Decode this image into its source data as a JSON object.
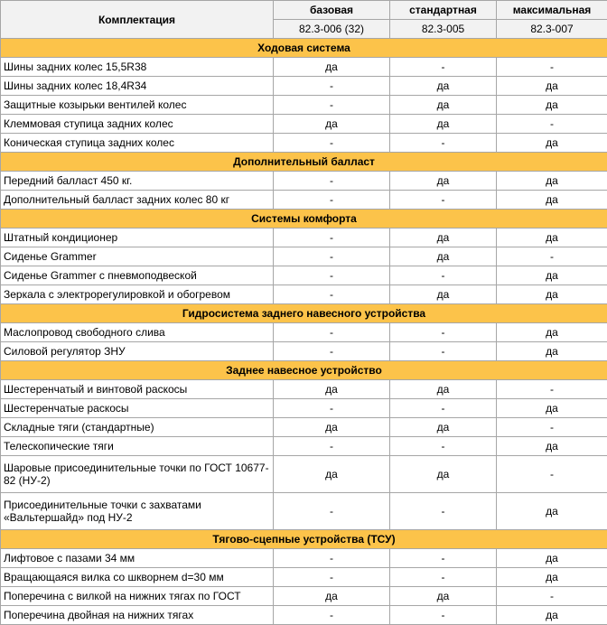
{
  "header": {
    "title": "Комплектация",
    "columns": [
      {
        "name": "базовая",
        "code": "82.3-006 (32)"
      },
      {
        "name": "стандартная",
        "code": "82.3-005"
      },
      {
        "name": "максимальная",
        "code": "82.3-007"
      }
    ]
  },
  "sections": [
    {
      "title": "Ходовая система",
      "rows": [
        {
          "label": "Шины задних колес 15,5R38",
          "values": [
            "да",
            "-",
            "-"
          ]
        },
        {
          "label": "Шины задних колес 18,4R34",
          "values": [
            "-",
            "да",
            "да"
          ]
        },
        {
          "label": "Защитные козырьки вентилей колес",
          "values": [
            "-",
            "да",
            "да"
          ]
        },
        {
          "label": "Клеммовая ступица задних колес",
          "values": [
            "да",
            "да",
            "-"
          ]
        },
        {
          "label": "Коническая ступица задних колес",
          "values": [
            "-",
            "-",
            "да"
          ]
        }
      ]
    },
    {
      "title": "Дополнительный балласт",
      "rows": [
        {
          "label": "Передний балласт 450 кг.",
          "values": [
            "-",
            "да",
            "да"
          ]
        },
        {
          "label": "Дополнительный балласт задних колес 80 кг",
          "values": [
            "-",
            "-",
            "да"
          ]
        }
      ]
    },
    {
      "title": "Системы комфорта",
      "rows": [
        {
          "label": "Штатный кондиционер",
          "values": [
            "-",
            "да",
            "да"
          ]
        },
        {
          "label": "Сиденье Grammer",
          "values": [
            "-",
            "да",
            "-"
          ]
        },
        {
          "label": "Сиденье Grammer с пневмоподвеской",
          "values": [
            "-",
            "-",
            "да"
          ]
        },
        {
          "label": "Зеркала с электрорегулировкой и обогревом",
          "values": [
            "-",
            "да",
            "да"
          ]
        }
      ]
    },
    {
      "title": "Гидросистема заднего навесного устройства",
      "rows": [
        {
          "label": "Маслопровод свободного слива",
          "values": [
            "-",
            "-",
            "да"
          ]
        },
        {
          "label": "Силовой регулятор ЗНУ",
          "values": [
            "-",
            "-",
            "да"
          ]
        }
      ]
    },
    {
      "title": "Заднее навесное устройство",
      "rows": [
        {
          "label": "Шестеренчатый и винтовой раскосы",
          "values": [
            "да",
            "да",
            "-"
          ]
        },
        {
          "label": "Шестеренчатые раскосы",
          "values": [
            "-",
            "-",
            "да"
          ]
        },
        {
          "label": "Складные тяги (стандартные)",
          "values": [
            "да",
            "да",
            "-"
          ]
        },
        {
          "label": "Телескопические тяги",
          "values": [
            "-",
            "-",
            "да"
          ]
        },
        {
          "label": "Шаровые присоединительные точки по ГОСТ 10677-82 (НУ-2)",
          "values": [
            "да",
            "да",
            "-"
          ]
        },
        {
          "label": "Присоединительные точки с захватами «Вальтершайд» под НУ-2",
          "values": [
            "-",
            "-",
            "да"
          ]
        }
      ]
    },
    {
      "title": "Тягово-сцепные устройства (ТСУ)",
      "rows": [
        {
          "label": "Лифтовое с пазами 34 мм",
          "values": [
            "-",
            "-",
            "да"
          ]
        },
        {
          "label": "Вращающаяся вилка со шкворнем d=30 мм",
          "values": [
            "-",
            "-",
            "да"
          ]
        },
        {
          "label": "Поперечина с вилкой на нижних тягах по ГОСТ",
          "values": [
            "да",
            "да",
            "-"
          ]
        },
        {
          "label": "Поперечина двойная на нижних тягах",
          "values": [
            "-",
            "-",
            "да"
          ]
        }
      ]
    }
  ]
}
